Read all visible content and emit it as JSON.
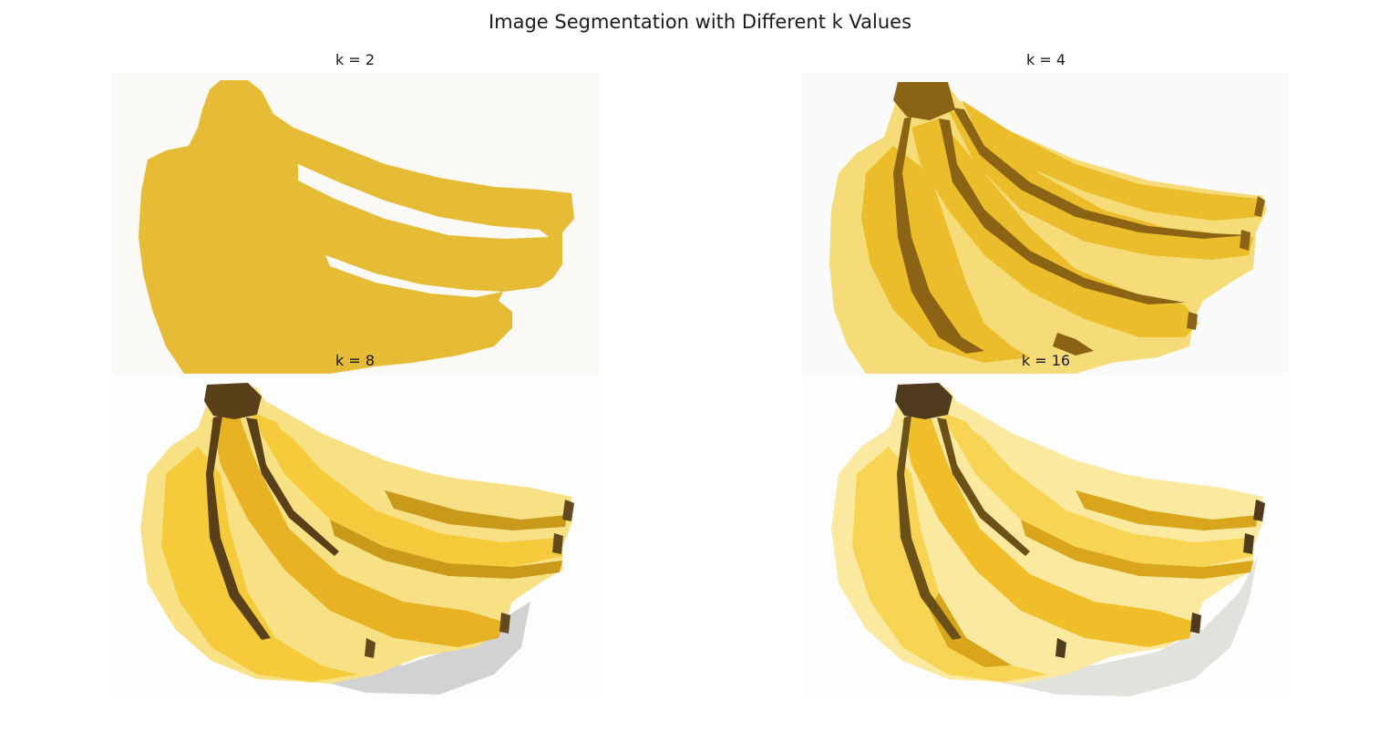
{
  "figure": {
    "title": "Image Segmentation with Different k Values",
    "panels": [
      {
        "id": "k2",
        "title": "k = 2",
        "k": 2,
        "palette": {
          "background": "#faf9f5",
          "banana": "#e6bc36"
        }
      },
      {
        "id": "k4",
        "title": "k = 4",
        "k": 4,
        "palette": {
          "background": "#fafafa",
          "light": "#f5dc78",
          "mid": "#ecbd2a",
          "dark": "#8a6414"
        }
      },
      {
        "id": "k8",
        "title": "k = 8",
        "k": 8,
        "palette": {
          "background": "#fdfdfd",
          "shadow": "#d2d2d2",
          "pale": "#f7e184",
          "light": "#f5cb3c",
          "mid": "#e7b224",
          "deep": "#c99a1a",
          "dark": "#5a4018",
          "stem": "#634a1e"
        }
      },
      {
        "id": "k16",
        "title": "k = 16",
        "k": 16,
        "palette": {
          "background": "#fdfdfd",
          "shadow": "#e2e2dc",
          "pale": "#fbe9a0",
          "light": "#f7d454",
          "mid": "#efbe28",
          "deep": "#d9a51a",
          "dark": "#6b5018",
          "stem": "#4e3a1c"
        }
      }
    ]
  }
}
